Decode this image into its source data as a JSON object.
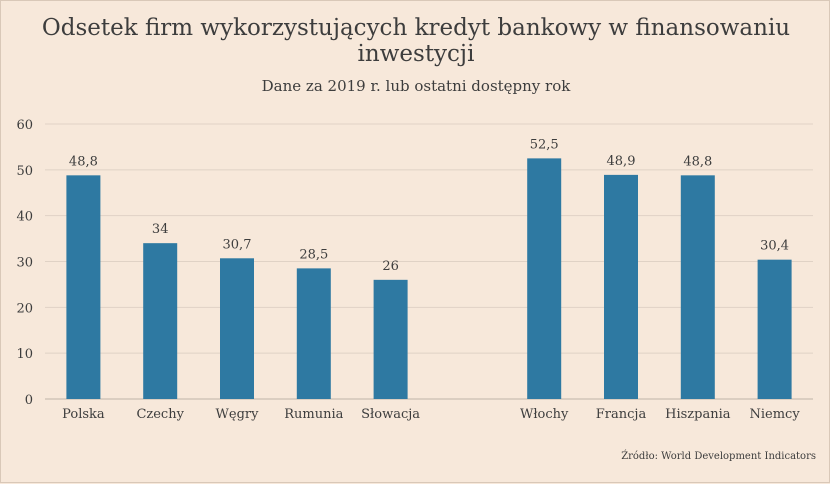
{
  "chart_data": {
    "type": "bar",
    "title": "Odsetek firm wykorzystujących kredyt bankowy w finansowaniu inwestycji",
    "title_lines": [
      "Odsetek firm wykorzystujących kredyt bankowy w finansowaniu",
      "inwestycji"
    ],
    "subtitle": "Dane za 2019 r. lub ostatni dostępny rok",
    "categories": [
      "Polska",
      "Czechy",
      "Węgry",
      "Rumunia",
      "Słowacja",
      "",
      "Włochy",
      "Francja",
      "Hiszpania",
      "Niemcy"
    ],
    "values": [
      48.8,
      34,
      30.7,
      28.5,
      26,
      null,
      52.5,
      48.9,
      48.8,
      30.4
    ],
    "value_labels": [
      "48,8",
      "34",
      "30,7",
      "28,5",
      "26",
      "",
      "52,5",
      "48,9",
      "48,8",
      "30,4"
    ],
    "ylim": [
      0,
      60
    ],
    "yticks": [
      0,
      10,
      20,
      30,
      40,
      50,
      60
    ],
    "grid": true,
    "bar_color": "#2e79a2",
    "source": "Źródło: World Development Indicators"
  }
}
